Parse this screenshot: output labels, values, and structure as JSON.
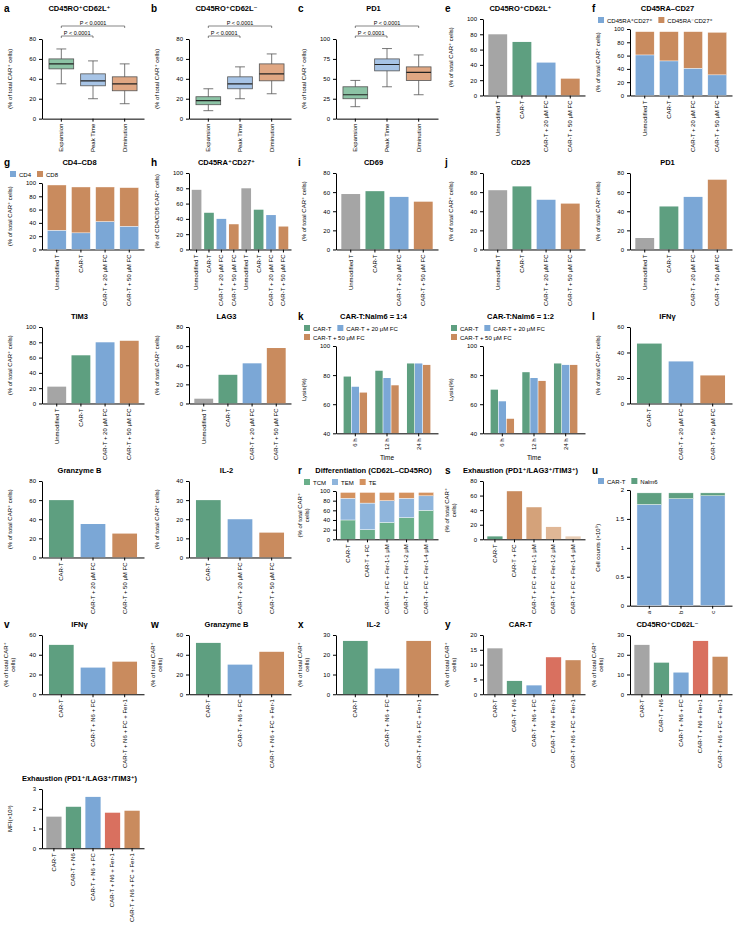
{
  "chart_data": [
    {
      "type": "box",
      "panel": "a",
      "title": "CD45RO⁺CD62L⁺",
      "ylabel": "(% of total CAR⁺ cells)",
      "categories": [
        "Expansion",
        "Peak Time",
        "Diminution"
      ],
      "min": [
        35,
        20,
        15
      ],
      "q1": [
        50,
        33,
        28
      ],
      "median": [
        55,
        38,
        35
      ],
      "q3": [
        60,
        45,
        42
      ],
      "max": [
        70,
        58,
        55
      ],
      "colors": [
        "#8cc3a5",
        "#a7c4e6",
        "#e0a783"
      ],
      "ylim": [
        0,
        80
      ],
      "yticks": [
        0,
        20,
        40,
        60,
        80
      ],
      "annotations": [
        "P < 0.0001",
        "P < 0.0001"
      ]
    },
    {
      "type": "box",
      "panel": "b",
      "title": "CD45RO⁺CD62L⁻",
      "ylabel": "(% of total CAR⁺ cells)",
      "categories": [
        "Expansion",
        "Peak Time",
        "Diminution"
      ],
      "min": [
        8,
        20,
        25
      ],
      "q1": [
        14,
        30,
        38
      ],
      "median": [
        18,
        35,
        45
      ],
      "q3": [
        22,
        42,
        55
      ],
      "max": [
        30,
        52,
        65
      ],
      "colors": [
        "#8cc3a5",
        "#a7c4e6",
        "#e0a783"
      ],
      "ylim": [
        0,
        80
      ],
      "yticks": [
        0,
        20,
        40,
        60,
        80
      ],
      "annotations": [
        "P < 0.0001",
        "P < 0.0001"
      ]
    },
    {
      "type": "box",
      "panel": "c",
      "title": "PD1",
      "ylabel": "(% of total CAR⁺ cells)",
      "categories": [
        "Expansion",
        "Peak Time",
        "Diminution"
      ],
      "min": [
        15,
        40,
        30
      ],
      "q1": [
        25,
        60,
        48
      ],
      "median": [
        30,
        68,
        58
      ],
      "q3": [
        40,
        75,
        65
      ],
      "max": [
        48,
        88,
        80
      ],
      "colors": [
        "#8cc3a5",
        "#a7c4e6",
        "#e0a783"
      ],
      "ylim": [
        0,
        100
      ],
      "yticks": [
        0,
        25,
        50,
        75,
        100
      ],
      "annotations": [
        "P < 0.0001",
        "P < 0.0001"
      ]
    },
    {
      "type": "bar",
      "panel": "e",
      "title": "CD45RO⁺CD62L⁺",
      "ylabel": "(% of total CAR⁺ cells)",
      "categories": [
        "Unmodified T",
        "CAR-T",
        "CAR-T + 20 μM FC",
        "CAR-T + 50 μM FC"
      ],
      "values": [
        80,
        70,
        43,
        22
      ],
      "colors": [
        "#a5a5a5",
        "#5e9f80",
        "#7ba7d6",
        "#c98b5e"
      ],
      "ylim": [
        0,
        100
      ],
      "yticks": [
        0,
        20,
        40,
        60,
        80,
        100
      ]
    },
    {
      "type": "bar",
      "panel": "f",
      "title": "CD45RA–CD27",
      "ylabel": "(% of total CAR⁺ cells)",
      "stacked": true,
      "legend": "top",
      "categories": [
        "Unmodified T",
        "CAR-T",
        "CAR-T + 20 μM FC",
        "CAR-T + 50 μM FC"
      ],
      "series": [
        {
          "name": "CD45RA⁺CD27⁺",
          "color": "#7ba7d6",
          "values": [
            61,
            52,
            41,
            31
          ]
        },
        {
          "name": "CD45RA⁻CD27⁺",
          "color": "#c98b5e",
          "values": [
            35,
            44,
            55,
            64
          ]
        }
      ],
      "ylim": [
        0,
        100
      ],
      "yticks": [
        0,
        20,
        40,
        60,
        80,
        100
      ]
    },
    {
      "type": "bar",
      "panel": "g",
      "title": "CD4–CD8",
      "ylabel": "(% of total CAR⁺ cells)",
      "stacked": true,
      "legend": "top",
      "categories": [
        "Unmodified T",
        "CAR-T",
        "CAR-T + 20 μM FC",
        "CAR-T + 50 μM FC"
      ],
      "series": [
        {
          "name": "CD4",
          "color": "#7ba7d6",
          "values": [
            29,
            25,
            42,
            35
          ]
        },
        {
          "name": "CD8",
          "color": "#c98b5e",
          "values": [
            68,
            69,
            52,
            58
          ]
        }
      ],
      "ylim": [
        0,
        100
      ],
      "yticks": [
        0,
        20,
        40,
        60,
        80,
        100
      ]
    },
    {
      "type": "bar",
      "panel": "h",
      "title": "CD45RA⁺CD27⁺",
      "ylabel": "(% of CD4/CD8 CAR⁺ cells)",
      "categories": [
        "Unmodified T",
        "CAR-T",
        "CAR-T + 20 μM FC",
        "CAR-T + 50 μM FC",
        "Unmodified T",
        "CAR-T",
        "CAR-T + 20 μM FC",
        "CAR-T + 50 μM FC"
      ],
      "values": [
        78,
        48,
        40,
        33,
        80,
        52,
        45,
        30
      ],
      "colors": [
        "#a5a5a5",
        "#5e9f80",
        "#7ba7d6",
        "#c98b5e",
        "#a5a5a5",
        "#5e9f80",
        "#7ba7d6",
        "#c98b5e"
      ],
      "ylim": [
        0,
        100
      ],
      "yticks": [
        0,
        20,
        40,
        60,
        80,
        100
      ]
    },
    {
      "type": "bar",
      "panel": "i",
      "title": "CD69",
      "ylabel": "(% of total CAR⁺ cells)",
      "categories": [
        "Unmodified T",
        "CAR-T",
        "CAR-T + 20 μM FC",
        "CAR-T + 50 μM FC"
      ],
      "values": [
        58,
        61,
        55,
        50
      ],
      "colors": [
        "#a5a5a5",
        "#5e9f80",
        "#7ba7d6",
        "#c98b5e"
      ],
      "ylim": [
        0,
        80
      ],
      "yticks": [
        0,
        20,
        40,
        60,
        80
      ]
    },
    {
      "type": "bar",
      "panel": "j",
      "title": "CD25",
      "ylabel": "(% of total CAR⁺ cells)",
      "categories": [
        "Unmodified T",
        "CAR-T",
        "CAR-T + 20 μM FC",
        "CAR-T + 50 μM FC"
      ],
      "values": [
        62,
        66,
        52,
        48
      ],
      "colors": [
        "#a5a5a5",
        "#5e9f80",
        "#7ba7d6",
        "#c98b5e"
      ],
      "ylim": [
        0,
        80
      ],
      "yticks": [
        0,
        20,
        40,
        60,
        80
      ]
    },
    {
      "type": "bar",
      "title": "PD1",
      "ylabel": "(% of total CAR⁺ cells)",
      "categories": [
        "Unmodified T",
        "CAR-T",
        "CAR-T + 20 μM FC",
        "CAR-T + 50 μM FC"
      ],
      "values": [
        12,
        45,
        55,
        73
      ],
      "colors": [
        "#a5a5a5",
        "#5e9f80",
        "#7ba7d6",
        "#c98b5e"
      ],
      "ylim": [
        0,
        80
      ],
      "yticks": [
        0,
        20,
        40,
        60,
        80
      ]
    },
    {
      "type": "bar",
      "title": "TIM3",
      "ylabel": "(% of total CAR⁺ cells)",
      "categories": [
        "Unmodified T",
        "CAR-T",
        "CAR-T + 20 μM FC",
        "CAR-T + 50 μM FC"
      ],
      "values": [
        22,
        63,
        80,
        82
      ],
      "colors": [
        "#a5a5a5",
        "#5e9f80",
        "#7ba7d6",
        "#c98b5e"
      ],
      "ylim": [
        0,
        100
      ],
      "yticks": [
        0,
        20,
        40,
        60,
        80,
        100
      ]
    },
    {
      "type": "bar",
      "title": "LAG3",
      "ylabel": "(% of total CAR⁺ cells)",
      "categories": [
        "Unmodified T",
        "CAR-T",
        "CAR-T + 20 μM FC",
        "CAR-T + 50 μM FC"
      ],
      "values": [
        5,
        30,
        42,
        58
      ],
      "colors": [
        "#a5a5a5",
        "#5e9f80",
        "#7ba7d6",
        "#c98b5e"
      ],
      "ylim": [
        0,
        80
      ],
      "yticks": [
        0,
        20,
        40,
        60,
        80
      ]
    },
    {
      "type": "bar",
      "panel": "k",
      "title": "CAR-T:Nalm6 = 1:4",
      "ylabel": "Lysis(%)",
      "xlabel": "Time",
      "legend": "top",
      "categories": [
        "6 h",
        "12 h",
        "24 h"
      ],
      "series": [
        {
          "name": "CAR-T",
          "color": "#5e9f80",
          "values": [
            79,
            83,
            88
          ]
        },
        {
          "name": "CAR-T + 20 μM FC",
          "color": "#7ba7d6",
          "values": [
            72,
            78,
            88
          ]
        },
        {
          "name": "CAR-T + 50 μM FC",
          "color": "#c98b5e",
          "values": [
            68,
            73,
            87
          ]
        }
      ],
      "ylim": [
        40,
        100
      ],
      "yticks": [
        40,
        60,
        80,
        100
      ]
    },
    {
      "type": "bar",
      "title": "CAR-T:Nalm6 = 1:2",
      "ylabel": "Lysis(%)",
      "xlabel": "Time",
      "legend": "top",
      "categories": [
        "6 h",
        "12 h",
        "24 h"
      ],
      "series": [
        {
          "name": "CAR-T",
          "color": "#5e9f80",
          "values": [
            70,
            82,
            88
          ]
        },
        {
          "name": "CAR-T + 20 μM FC",
          "color": "#7ba7d6",
          "values": [
            62,
            78,
            87
          ]
        },
        {
          "name": "CAR-T + 50 μM FC",
          "color": "#c98b5e",
          "values": [
            50,
            76,
            87
          ]
        }
      ],
      "ylim": [
        40,
        100
      ],
      "yticks": [
        40,
        60,
        80,
        100
      ]
    },
    {
      "type": "bar",
      "panel": "l",
      "title": "IFNγ",
      "ylabel": "(% of total CAR⁺ cells)",
      "categories": [
        "CAR-T",
        "CAR-T + 20 μM FC",
        "CAR-T + 50 μM FC"
      ],
      "values": [
        47,
        33,
        22
      ],
      "colors": [
        "#5e9f80",
        "#7ba7d6",
        "#c98b5e"
      ],
      "ylim": [
        0,
        60
      ],
      "yticks": [
        0,
        20,
        40,
        60
      ]
    },
    {
      "type": "bar",
      "title": "Granzyme B",
      "ylabel": "(% of total CAR⁺ cells)",
      "categories": [
        "CAR-T",
        "CAR-T + 20 μM FC",
        "CAR-T + 50 μM FC"
      ],
      "values": [
        60,
        35,
        25
      ],
      "colors": [
        "#5e9f80",
        "#7ba7d6",
        "#c98b5e"
      ],
      "ylim": [
        0,
        80
      ],
      "yticks": [
        0,
        20,
        40,
        60,
        80
      ]
    },
    {
      "type": "bar",
      "title": "IL-2",
      "ylabel": "(% of total CAR⁺ cells)",
      "categories": [
        "CAR-T",
        "CAR-T + 20 μM FC",
        "CAR-T + 50 μM FC"
      ],
      "values": [
        30,
        20,
        13
      ],
      "colors": [
        "#5e9f80",
        "#7ba7d6",
        "#c98b5e"
      ],
      "ylim": [
        0,
        40
      ],
      "yticks": [
        0,
        10,
        20,
        30,
        40
      ]
    },
    {
      "type": "bar",
      "panel": "r",
      "title": "Differentiation (CD62L–CD45RO)",
      "ylabel": "(% of total CAR⁺ cells)",
      "stacked": true,
      "legend": "top",
      "categories": [
        "CAR-T",
        "CAR-T + FC",
        "CAR-T + FC + Fer-1-1 μM",
        "CAR-T + FC + Fer-1-2 μM",
        "CAR-T + FC + Fer-1-4 μM"
      ],
      "series": [
        {
          "name": "TCM",
          "color": "#6aaf8a",
          "values": [
            40,
            20,
            35,
            45,
            60
          ]
        },
        {
          "name": "TEM",
          "color": "#8fb5dc",
          "values": [
            45,
            55,
            45,
            40,
            30
          ]
        },
        {
          "name": "TE",
          "color": "#d4925f",
          "values": [
            12,
            22,
            17,
            12,
            7
          ]
        }
      ],
      "ylim": [
        0,
        100
      ],
      "yticks": [
        0,
        20,
        40,
        60,
        80,
        100
      ]
    },
    {
      "type": "bar",
      "panel": "s",
      "title": "Exhaustion (PD1⁺/LAG3⁺/TIM3⁺)",
      "ylabel": "(% of total CAR⁺ cells)",
      "categories": [
        "CAR-T",
        "CAR-T + FC",
        "CAR-T + FC + Fer-1-1 μM",
        "CAR-T + FC + Fer-1-2 μM",
        "CAR-T + FC + Fer-1-4 μM"
      ],
      "values": [
        4,
        66,
        44,
        17,
        4
      ],
      "colors": [
        "#5e9f80",
        "#c98b5e",
        "#d4a27a",
        "#e0b796",
        "#e8cdb5"
      ],
      "ylim": [
        0,
        80
      ],
      "yticks": [
        0,
        20,
        40,
        60,
        80
      ]
    },
    {
      "type": "bar",
      "panel": "u",
      "ylabel": "Cell counts (×10⁵)",
      "stacked": true,
      "legend": "top",
      "categories": [
        "a",
        "b",
        "c"
      ],
      "series": [
        {
          "name": "CAR-T",
          "color": "#7ba7d6",
          "values": [
            1.75,
            1.85,
            1.9
          ]
        },
        {
          "name": "Nalm6",
          "color": "#5e9f80",
          "values": [
            0.2,
            0.1,
            0.05
          ]
        }
      ],
      "ylim": [
        0,
        2
      ],
      "yticks": [
        0,
        0.5,
        1,
        1.5,
        2
      ]
    },
    {
      "type": "bar",
      "panel": "v",
      "title": "IFNγ",
      "ylabel": "(% of total CAR⁺ cells)",
      "categories": [
        "CAR-T",
        "CAR-T + N6 + FC",
        "CAR-T + N6 + FC + Fer-1"
      ],
      "values": [
        50,
        27,
        33
      ],
      "colors": [
        "#5e9f80",
        "#7ba7d6",
        "#c98b5e"
      ],
      "ylim": [
        0,
        60
      ],
      "yticks": [
        0,
        20,
        40,
        60
      ]
    },
    {
      "type": "bar",
      "panel": "w",
      "title": "Granzyme B",
      "ylabel": "(% of total CAR⁺ cells)",
      "categories": [
        "CAR-T",
        "CAR-T + N6 + FC",
        "CAR-T + N6 + FC + Fer-1"
      ],
      "values": [
        52,
        30,
        43
      ],
      "colors": [
        "#5e9f80",
        "#7ba7d6",
        "#c98b5e"
      ],
      "ylim": [
        0,
        60
      ],
      "yticks": [
        0,
        20,
        40,
        60
      ]
    },
    {
      "type": "bar",
      "panel": "x",
      "title": "IL-2",
      "ylabel": "(% of total CAR⁺ cells)",
      "categories": [
        "CAR-T",
        "CAR-T + N6 + FC",
        "CAR-T + N6 + FC + Fer-1"
      ],
      "values": [
        27,
        13,
        27
      ],
      "colors": [
        "#5e9f80",
        "#7ba7d6",
        "#c98b5e"
      ],
      "ylim": [
        0,
        30
      ],
      "yticks": [
        0,
        10,
        20,
        30
      ]
    },
    {
      "type": "bar",
      "panel": "y",
      "title": "CAR-T",
      "ylabel": "(% of total CAR⁺ cells)",
      "categories": [
        "CAR-T",
        "CAR-T + N6",
        "CAR-T + N6 + FC",
        "CAR-T + N6 + Fer-1",
        "CAR-T + N6 + FC + Fer-1"
      ],
      "values": [
        15.5,
        4.5,
        3,
        12.5,
        11.5
      ],
      "colors": [
        "#a5a5a5",
        "#5e9f80",
        "#7ba7d6",
        "#d9705f",
        "#c98b5e"
      ],
      "ylim": [
        0,
        20
      ],
      "yticks": [
        0,
        5,
        10,
        15,
        20
      ]
    },
    {
      "type": "bar",
      "title": "CD45RO⁺CD62L⁻",
      "ylabel": "(% of total CAR⁺ cells)",
      "categories": [
        "CAR-T",
        "CAR-T + N6",
        "CAR-T + N6 + FC",
        "CAR-T + N6 + Fer-1",
        "CAR-T + N6 + FC + Fer-1"
      ],
      "values": [
        25,
        16,
        11,
        27,
        19
      ],
      "colors": [
        "#a5a5a5",
        "#5e9f80",
        "#7ba7d6",
        "#d9705f",
        "#c98b5e"
      ],
      "ylim": [
        0,
        30
      ],
      "yticks": [
        0,
        10,
        20,
        30
      ]
    },
    {
      "type": "bar",
      "title": "Exhaustion (PD1⁺/LAG3⁺/TIM3⁺)",
      "ylabel": "MFI(×10³)",
      "categories": [
        "CAR-T",
        "CAR-T + N6",
        "CAR-T + N6 + FC",
        "CAR-T + N6 + Fer-1",
        "CAR-T + N6 + FC + Fer-1"
      ],
      "values": [
        1.6,
        2.1,
        2.6,
        1.8,
        1.9
      ],
      "colors": [
        "#a5a5a5",
        "#5e9f80",
        "#7ba7d6",
        "#d9705f",
        "#c98b5e"
      ],
      "ylim": [
        0,
        3
      ],
      "yticks": [
        0,
        1,
        2,
        3
      ]
    }
  ]
}
